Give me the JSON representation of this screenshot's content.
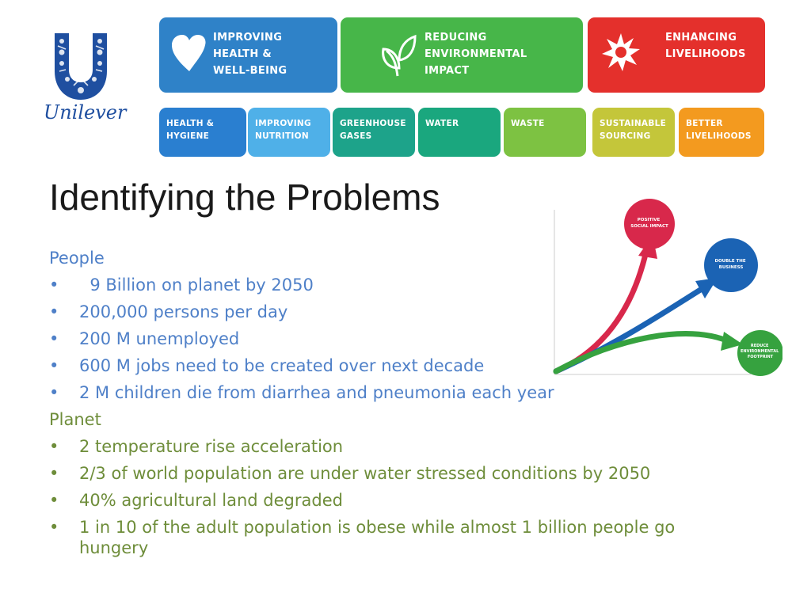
{
  "logo": {
    "word": "Unilever",
    "brand_color": "#1f4fa0"
  },
  "banner": {
    "pillars": [
      {
        "label": "IMPROVING\nHEALTH &\nWELL-BEING",
        "color": "#2f82c8",
        "icon": "heart-icon"
      },
      {
        "label": "REDUCING\nENVIRONMENTAL\nIMPACT",
        "color": "#47b649",
        "icon": "leaf-icon"
      },
      {
        "label": "ENHANCING\nLIVELIHOODS",
        "color": "#e4302c",
        "icon": "sunburst-icon"
      }
    ],
    "commitments": [
      {
        "label": "HEALTH &\nHYGIENE",
        "color": "#2a7fd0"
      },
      {
        "label": "IMPROVING\nNUTRITION",
        "color": "#4fb0e8"
      },
      {
        "label": "GREENHOUSE\nGASES",
        "color": "#1da38a"
      },
      {
        "label": "WATER",
        "color": "#1aa77e"
      },
      {
        "label": "WASTE",
        "color": "#7dc242"
      },
      {
        "label": "SUSTAINABLE\nSOURCING",
        "color": "#c4c63a"
      },
      {
        "label": "BETTER\nLIVELIHOODS",
        "color": "#f39a1f"
      }
    ]
  },
  "title": "Identifying the Problems",
  "people": {
    "heading": "People",
    "items": [
      "  9 Billion on planet by 2050",
      "200,000 persons per day",
      "200 M unemployed",
      "600 M jobs need to be created over next decade",
      "2 M children die from diarrhea and pneumonia each year"
    ],
    "color": "#4f80c8"
  },
  "planet": {
    "heading": "Planet",
    "items": [
      "2 temperature rise acceleration",
      "2/3 of world population are under water stressed conditions by 2050",
      "40% agricultural land degraded",
      "1 in 10 of the adult population is obese while almost 1 billion people go hungery"
    ],
    "color": "#6e8d3a"
  },
  "bullet": "•",
  "diagram": {
    "goals": [
      {
        "label": "POSITIVE\nSOCIAL IMPACT",
        "color": "#d8284b"
      },
      {
        "label": "DOUBLE THE\nBUSINESS",
        "color": "#1b63b4"
      },
      {
        "label": "REDUCE\nENVIRONMENTAL\nFOOTPRINT",
        "color": "#36a23f"
      }
    ]
  }
}
